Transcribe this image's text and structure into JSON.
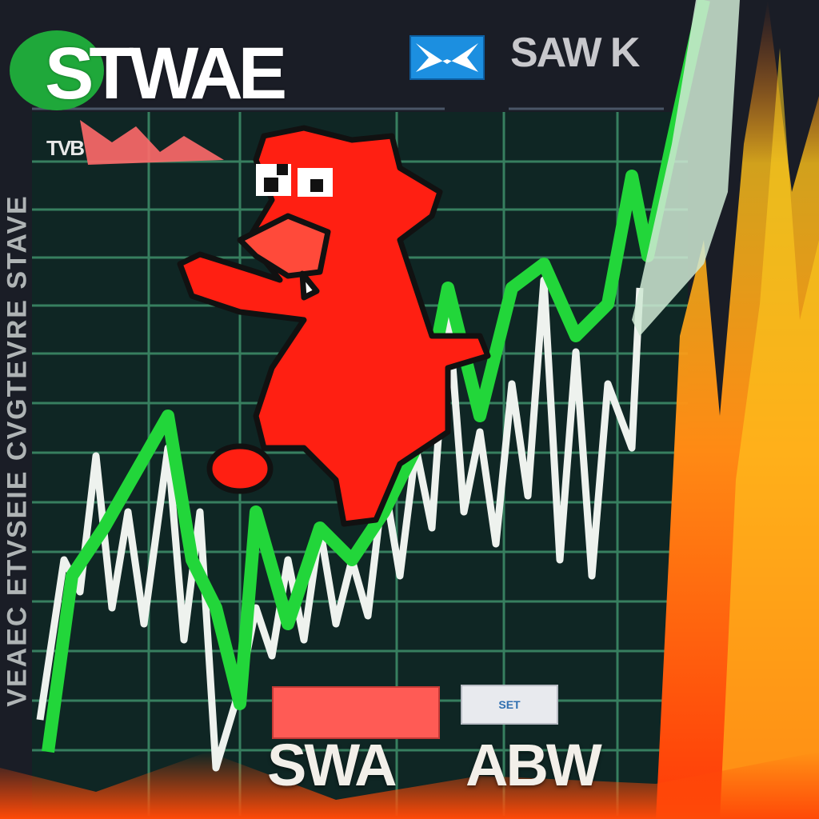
{
  "header": {
    "logo_text": "STWAE",
    "right_text": "SAW K",
    "small_tag": "TVB",
    "mail_icon": "mail-icon"
  },
  "side_text": "VEAEC ETVSEIE CVGTEVRE STAVE",
  "badges": {
    "red_badge_color": "#ff5b55",
    "grey_badge_text": "SET"
  },
  "bottom": {
    "left_label": "SWA",
    "right_label": "ABW"
  },
  "colors": {
    "background": "#1a1d26",
    "grid_green": "#3f8f6a",
    "line_green": "#22d63a",
    "line_white": "#f0f3f0",
    "mascot_red": "#ff1f12",
    "fire_orange": "#ff6a10",
    "fire_yellow": "#ffd21a"
  },
  "mascot": "red-bull-icon"
}
